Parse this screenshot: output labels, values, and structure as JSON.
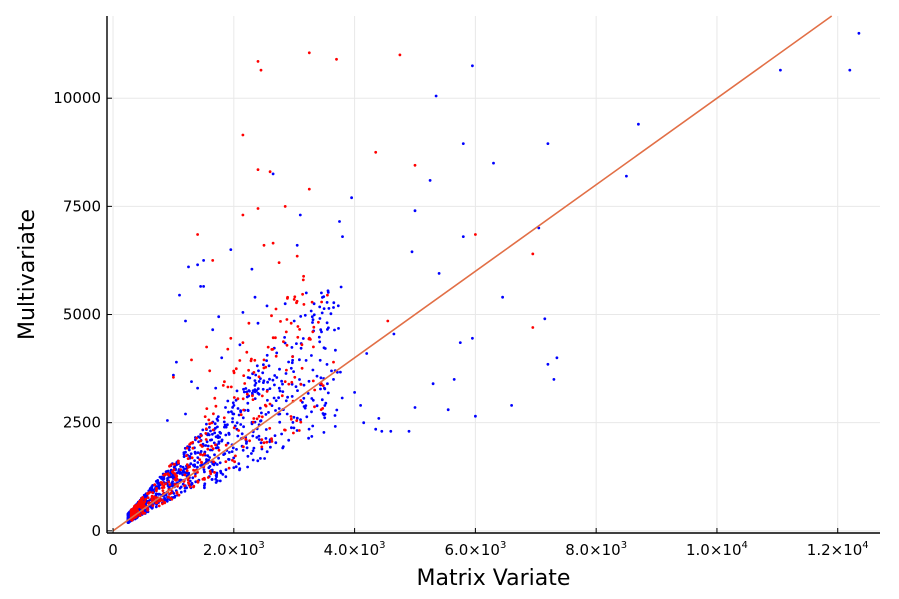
{
  "chart_data": {
    "type": "scatter",
    "title": "",
    "xlabel": "Matrix Variate",
    "ylabel": "Multivariate",
    "xlim": [
      -100,
      12700
    ],
    "ylim": [
      -50,
      11900
    ],
    "grid": true,
    "legend": "none",
    "x_ticks": [
      {
        "value": 0,
        "label": "0"
      },
      {
        "value": 2000,
        "label": "2.0×10",
        "exp": "3"
      },
      {
        "value": 4000,
        "label": "4.0×10",
        "exp": "3"
      },
      {
        "value": 6000,
        "label": "6.0×10",
        "exp": "3"
      },
      {
        "value": 8000,
        "label": "8.0×10",
        "exp": "3"
      },
      {
        "value": 10000,
        "label": "1.0×10",
        "exp": "4"
      },
      {
        "value": 12000,
        "label": "1.2×10",
        "exp": "4"
      }
    ],
    "y_ticks": [
      {
        "value": 0,
        "label": "0"
      },
      {
        "value": 2500,
        "label": "2500"
      },
      {
        "value": 5000,
        "label": "5000"
      },
      {
        "value": 7500,
        "label": "7500"
      },
      {
        "value": 10000,
        "label": "10000"
      }
    ],
    "reference_line": {
      "x": [
        0,
        11900
      ],
      "y": [
        0,
        11900
      ],
      "color": "#e26f46"
    },
    "series": [
      {
        "color": "#0000ff",
        "points": [
          [
            12350,
            11500
          ],
          [
            12200,
            10650
          ],
          [
            11050,
            10650
          ],
          [
            8700,
            9400
          ],
          [
            8500,
            8200
          ],
          [
            7200,
            8950
          ],
          [
            7050,
            7000
          ],
          [
            7150,
            4900
          ],
          [
            7350,
            4000
          ],
          [
            7200,
            3850
          ],
          [
            7300,
            3500
          ],
          [
            6300,
            8500
          ],
          [
            6450,
            5400
          ],
          [
            6600,
            2900
          ],
          [
            6000,
            2650
          ],
          [
            5950,
            10750
          ],
          [
            5800,
            8950
          ],
          [
            5800,
            6800
          ],
          [
            5950,
            4450
          ],
          [
            5750,
            4350
          ],
          [
            5650,
            3500
          ],
          [
            5550,
            2800
          ],
          [
            5350,
            10050
          ],
          [
            5400,
            5950
          ],
          [
            5250,
            8100
          ],
          [
            5300,
            3400
          ],
          [
            5000,
            7400
          ],
          [
            4950,
            6450
          ],
          [
            4900,
            2300
          ],
          [
            5000,
            2850
          ],
          [
            4650,
            4550
          ],
          [
            4600,
            2300
          ],
          [
            4450,
            2300
          ],
          [
            4400,
            2600
          ],
          [
            4350,
            2350
          ],
          [
            4200,
            4100
          ],
          [
            4150,
            2500
          ],
          [
            4100,
            2900
          ],
          [
            4000,
            3200
          ],
          [
            3950,
            7700
          ],
          [
            3800,
            6800
          ],
          [
            3750,
            7150
          ],
          [
            3650,
            3500
          ],
          [
            3550,
            3400
          ],
          [
            3500,
            3300
          ],
          [
            3450,
            5500
          ],
          [
            3300,
            4950
          ],
          [
            3200,
            5500
          ],
          [
            3100,
            7300
          ],
          [
            3050,
            6600
          ],
          [
            3000,
            4850
          ],
          [
            2850,
            5250
          ],
          [
            2650,
            8250
          ],
          [
            2550,
            5200
          ],
          [
            2400,
            4800
          ],
          [
            2300,
            6050
          ],
          [
            2350,
            5400
          ],
          [
            2150,
            5050
          ],
          [
            2100,
            4300
          ],
          [
            1950,
            6500
          ],
          [
            1800,
            4000
          ],
          [
            1750,
            4950
          ],
          [
            1650,
            4650
          ],
          [
            1500,
            6250
          ],
          [
            1500,
            5650
          ],
          [
            1450,
            5650
          ],
          [
            1400,
            6150
          ],
          [
            1250,
            6100
          ],
          [
            1200,
            4850
          ],
          [
            1100,
            5450
          ],
          [
            1050,
            3900
          ],
          [
            1000,
            3600
          ],
          [
            1300,
            3450
          ],
          [
            1400,
            3300
          ],
          [
            1700,
            3300
          ],
          [
            1900,
            3000
          ],
          [
            2000,
            2700
          ],
          [
            900,
            2550
          ],
          [
            1200,
            2700
          ]
        ],
        "dense_cluster": {
          "x_range": [
            250,
            3800
          ],
          "slope_low": 0.65,
          "slope_high": 1.6,
          "n": 950
        }
      },
      {
        "color": "#ff0000",
        "points": [
          [
            4750,
            11000
          ],
          [
            3250,
            11050
          ],
          [
            3700,
            10900
          ],
          [
            2400,
            10850
          ],
          [
            2450,
            10650
          ],
          [
            4350,
            8750
          ],
          [
            5000,
            8450
          ],
          [
            2150,
            9150
          ],
          [
            2400,
            8350
          ],
          [
            2600,
            8300
          ],
          [
            3250,
            7900
          ],
          [
            2850,
            7500
          ],
          [
            2400,
            7450
          ],
          [
            2150,
            7300
          ],
          [
            2650,
            6650
          ],
          [
            2500,
            6600
          ],
          [
            3050,
            6350
          ],
          [
            2750,
            6200
          ],
          [
            1400,
            6850
          ],
          [
            1650,
            6250
          ],
          [
            6000,
            6850
          ],
          [
            6950,
            6400
          ],
          [
            6950,
            4700
          ],
          [
            4550,
            4850
          ],
          [
            3150,
            5800
          ],
          [
            3550,
            5450
          ],
          [
            3000,
            5350
          ],
          [
            2950,
            4800
          ],
          [
            2250,
            4800
          ],
          [
            2150,
            4350
          ],
          [
            1950,
            4450
          ],
          [
            1900,
            4200
          ],
          [
            1550,
            4250
          ],
          [
            1300,
            3950
          ],
          [
            1600,
            3700
          ],
          [
            2500,
            3950
          ],
          [
            3650,
            3900
          ],
          [
            1000,
            3550
          ],
          [
            3450,
            3400
          ],
          [
            2850,
            3450
          ]
        ],
        "dense_cluster": {
          "x_range": [
            300,
            3500
          ],
          "slope_low": 0.75,
          "slope_high": 1.9,
          "n": 380
        }
      }
    ]
  }
}
